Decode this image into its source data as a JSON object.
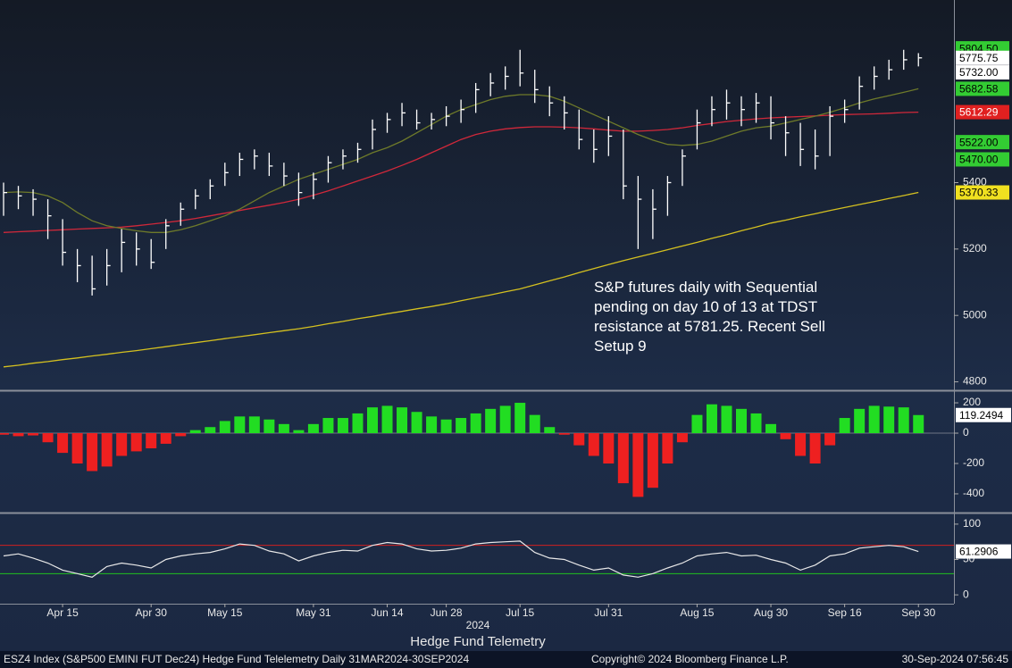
{
  "chart_data": [
    {
      "type": "ohlc",
      "annotation": "S&P futures daily with Sequential pending on day 10 of 13 at TDST resistance at 5781.25. Recent Sell Setup 9",
      "bar_color": "#ffffff",
      "high": [
        5400,
        5390,
        5380,
        5350,
        5290,
        5200,
        5180,
        5200,
        5260,
        5250,
        5230,
        5290,
        5340,
        5380,
        5410,
        5460,
        5490,
        5500,
        5490,
        5460,
        5430,
        5430,
        5480,
        5500,
        5520,
        5590,
        5610,
        5640,
        5620,
        5610,
        5630,
        5650,
        5700,
        5730,
        5750,
        5800,
        5740,
        5690,
        5660,
        5620,
        5560,
        5600,
        5560,
        5420,
        5380,
        5420,
        5500,
        5620,
        5660,
        5680,
        5660,
        5670,
        5660,
        5600,
        5580,
        5560,
        5630,
        5650,
        5720,
        5750,
        5770,
        5800,
        5790
      ],
      "low": [
        5300,
        5320,
        5300,
        5230,
        5150,
        5100,
        5060,
        5090,
        5130,
        5150,
        5140,
        5200,
        5270,
        5320,
        5350,
        5390,
        5420,
        5440,
        5420,
        5390,
        5330,
        5350,
        5400,
        5440,
        5460,
        5500,
        5550,
        5570,
        5560,
        5560,
        5570,
        5580,
        5610,
        5660,
        5680,
        5690,
        5640,
        5600,
        5560,
        5500,
        5460,
        5480,
        5350,
        5200,
        5230,
        5300,
        5390,
        5500,
        5570,
        5590,
        5570,
        5580,
        5530,
        5480,
        5450,
        5440,
        5480,
        5580,
        5620,
        5680,
        5710,
        5740,
        5750
      ],
      "close": [
        5370,
        5360,
        5350,
        5300,
        5190,
        5150,
        5080,
        5150,
        5220,
        5200,
        5160,
        5270,
        5320,
        5360,
        5390,
        5430,
        5470,
        5480,
        5450,
        5420,
        5370,
        5410,
        5460,
        5480,
        5500,
        5560,
        5590,
        5610,
        5580,
        5590,
        5600,
        5620,
        5680,
        5700,
        5720,
        5730,
        5680,
        5640,
        5610,
        5530,
        5500,
        5540,
        5390,
        5350,
        5320,
        5400,
        5480,
        5580,
        5620,
        5640,
        5620,
        5640,
        5580,
        5550,
        5500,
        5480,
        5600,
        5620,
        5690,
        5720,
        5740,
        5770,
        5775.75
      ],
      "series": [
        {
          "color": "#d4c020",
          "values": [
            4845,
            4850,
            4856,
            4861,
            4867,
            4872,
            4878,
            4883,
            4889,
            4894,
            4900,
            4906,
            4912,
            4918,
            4924,
            4930,
            4936,
            4942,
            4948,
            4954,
            4960,
            4967,
            4975,
            4982,
            4990,
            4997,
            5005,
            5012,
            5020,
            5027,
            5035,
            5044,
            5053,
            5062,
            5071,
            5080,
            5092,
            5104,
            5116,
            5129,
            5141,
            5153,
            5165,
            5176,
            5187,
            5198,
            5209,
            5220,
            5232,
            5243,
            5255,
            5266,
            5278,
            5287,
            5297,
            5306,
            5316,
            5325,
            5334,
            5343,
            5352,
            5361,
            5370.33
          ]
        },
        {
          "color": "#d0283a",
          "values": [
            5250,
            5252,
            5254,
            5256,
            5258,
            5260,
            5262,
            5264,
            5266,
            5270,
            5275,
            5280,
            5285,
            5292,
            5300,
            5308,
            5316,
            5324,
            5332,
            5340,
            5350,
            5362,
            5375,
            5390,
            5405,
            5420,
            5435,
            5452,
            5470,
            5490,
            5510,
            5530,
            5545,
            5555,
            5562,
            5566,
            5568,
            5568,
            5567,
            5565,
            5562,
            5558,
            5555,
            5555,
            5557,
            5560,
            5565,
            5572,
            5578,
            5584,
            5588,
            5592,
            5595,
            5597,
            5599,
            5601,
            5603,
            5605,
            5606,
            5607,
            5609,
            5611,
            5612.29
          ]
        },
        {
          "color": "#6e7a2a",
          "values": [
            5370,
            5372,
            5370,
            5360,
            5340,
            5310,
            5285,
            5270,
            5262,
            5255,
            5250,
            5250,
            5258,
            5270,
            5285,
            5300,
            5320,
            5345,
            5370,
            5390,
            5410,
            5425,
            5440,
            5455,
            5470,
            5490,
            5505,
            5525,
            5550,
            5575,
            5600,
            5620,
            5635,
            5650,
            5660,
            5665,
            5665,
            5660,
            5645,
            5625,
            5605,
            5585,
            5565,
            5545,
            5528,
            5515,
            5512,
            5515,
            5525,
            5540,
            5555,
            5565,
            5570,
            5580,
            5590,
            5600,
            5612,
            5625,
            5640,
            5652,
            5662,
            5672,
            5682.58
          ]
        }
      ],
      "tags": [
        {
          "value": 5804.5,
          "label": "5804.50",
          "color": "#33cc33"
        },
        {
          "value": 5775.75,
          "color": "#ffffff"
        },
        {
          "value": 5732,
          "label": "5732.00",
          "color": "#ffffff"
        },
        {
          "value": 5682.58,
          "color": "#33cc33"
        },
        {
          "value": 5612.29,
          "color": "#e02020"
        },
        {
          "value": 5522,
          "label": "5522.00",
          "color": "#33cc33"
        },
        {
          "value": 5470,
          "label": "5470.00",
          "color": "#33cc33"
        },
        {
          "value": 5370.33,
          "color": "#f0e020"
        }
      ],
      "ylim": [
        4780,
        5950
      ],
      "yticks": [
        4800,
        5000,
        5200,
        5400
      ]
    },
    {
      "type": "bar",
      "pos_color": "#22dd22",
      "neg_color": "#ee2020",
      "values": [
        -10,
        -20,
        -15,
        -60,
        -130,
        -200,
        -250,
        -220,
        -150,
        -120,
        -100,
        -70,
        -20,
        20,
        40,
        80,
        110,
        110,
        90,
        60,
        20,
        60,
        100,
        100,
        130,
        170,
        180,
        170,
        140,
        110,
        90,
        100,
        130,
        160,
        180,
        200,
        120,
        40,
        -10,
        -80,
        -150,
        -200,
        -330,
        -420,
        -360,
        -200,
        -60,
        120,
        190,
        180,
        160,
        130,
        60,
        -40,
        -150,
        -200,
        -80,
        100,
        160,
        180,
        175,
        170,
        119.2494
      ],
      "ylim": [
        -512,
        265
      ],
      "yticks": [
        -400,
        -200,
        0,
        200
      ]
    },
    {
      "type": "line",
      "color": "#e8e8e8",
      "values": [
        55,
        58,
        52,
        45,
        35,
        30,
        25,
        40,
        45,
        42,
        38,
        50,
        55,
        58,
        60,
        65,
        72,
        70,
        62,
        58,
        48,
        55,
        60,
        63,
        62,
        70,
        74,
        72,
        65,
        62,
        63,
        66,
        72,
        74,
        75,
        76,
        60,
        52,
        50,
        42,
        35,
        38,
        28,
        25,
        30,
        38,
        45,
        55,
        58,
        60,
        55,
        56,
        50,
        45,
        35,
        42,
        55,
        58,
        66,
        68,
        70,
        68,
        61.2906
      ],
      "ref_lines": [
        {
          "value": 70,
          "color": "#d02020"
        },
        {
          "value": 30,
          "color": "#20c020"
        }
      ],
      "categories": [
        null,
        null,
        null,
        null,
        "Apr 15",
        null,
        null,
        null,
        null,
        null,
        "Apr 30",
        null,
        null,
        null,
        null,
        "May 15",
        null,
        null,
        null,
        null,
        null,
        "May 31",
        null,
        null,
        null,
        null,
        "Jun 14",
        null,
        null,
        null,
        "Jun 28",
        null,
        null,
        null,
        null,
        "Jul 15",
        null,
        null,
        null,
        null,
        null,
        "Jul 31",
        null,
        null,
        null,
        null,
        null,
        "Aug 15",
        null,
        null,
        null,
        null,
        "Aug 30",
        null,
        null,
        null,
        null,
        "Sep 16",
        null,
        null,
        null,
        null,
        "Sep 30"
      ],
      "xlabel": "2024",
      "ylim": [
        -12.5,
        112.5
      ],
      "yticks": [
        0,
        50,
        100
      ]
    }
  ],
  "footer": {
    "title": "Hedge Fund Telemetry",
    "left": "ESZ4 Index (S&P500 EMINI FUT  Dec24) Hedge Fund Telelemetry  Daily 31MAR2024-30SEP2024",
    "copyright": "Copyright© 2024 Bloomberg Finance L.P.",
    "stamp": "30-Sep-2024 07:56:45"
  }
}
